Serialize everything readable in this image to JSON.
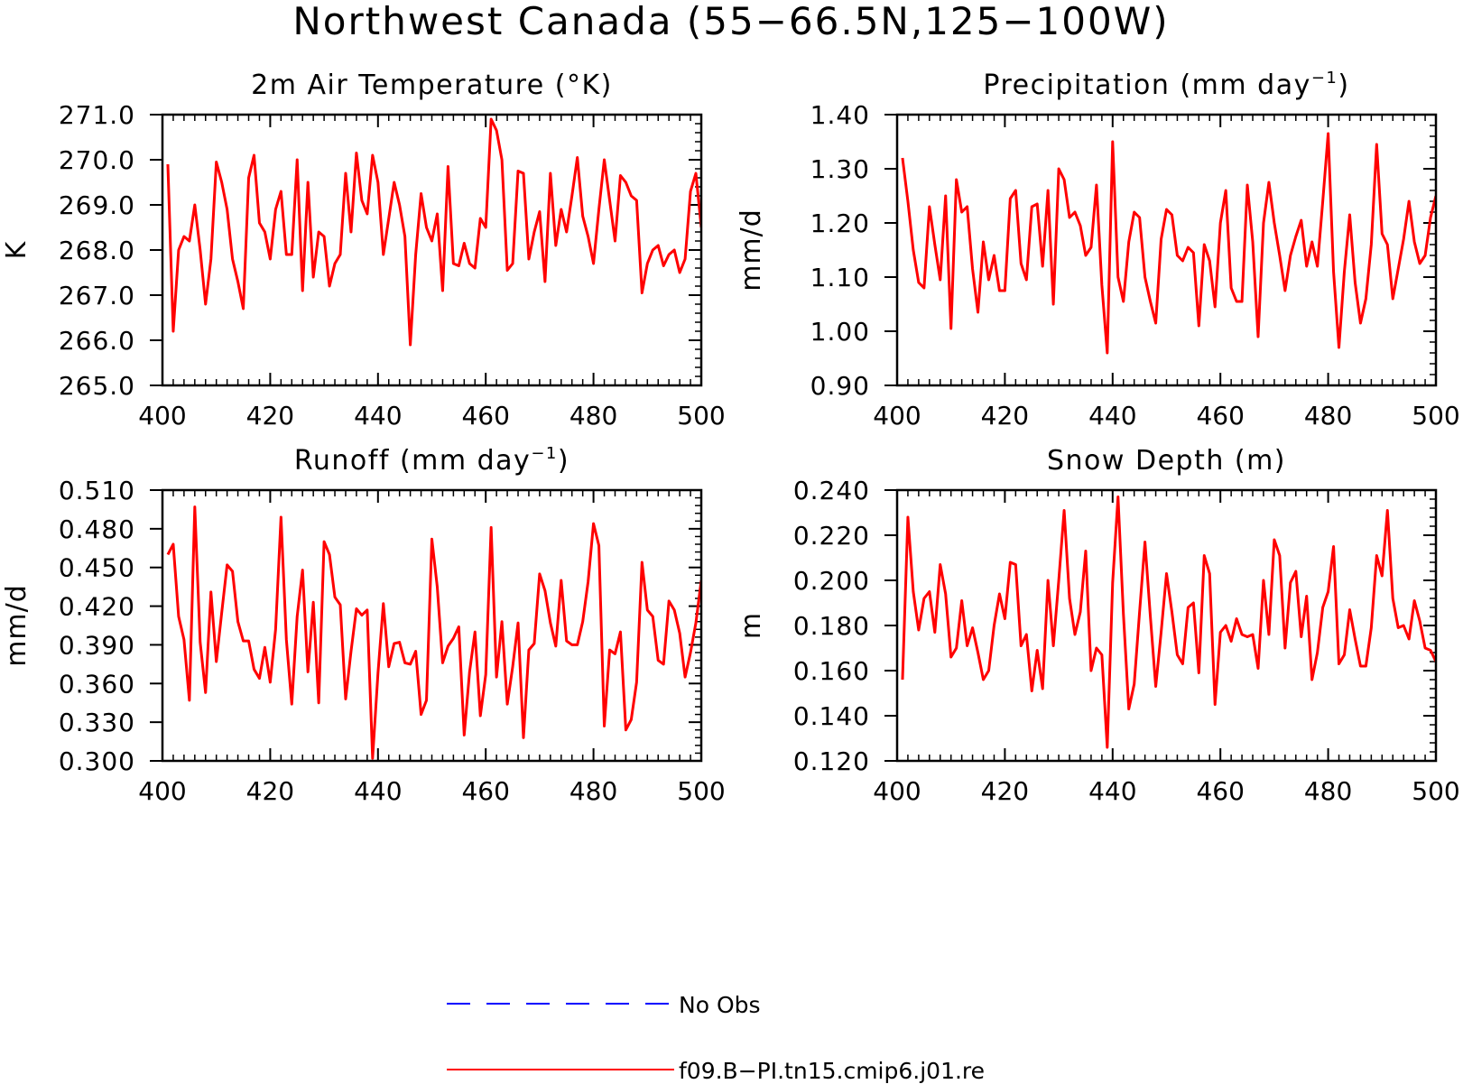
{
  "figure_title": "Northwest Canada (55−66.5N,125−100W)",
  "colors": {
    "model": "#ff0000",
    "obs": "#0000ff",
    "axis": "#000000"
  },
  "legend": {
    "items": [
      {
        "label": "No Obs",
        "color": "#0000ff",
        "style": "dashed"
      },
      {
        "label": "f09.B−PI.tn15.cmip6.j01.re",
        "color": "#ff0000",
        "style": "solid"
      }
    ]
  },
  "chart_data": [
    {
      "type": "line",
      "title": "2m Air Temperature (°K)",
      "title_sup": "",
      "title_suffix": "",
      "xlabel": "",
      "ylabel": "K",
      "xlim": [
        400,
        500
      ],
      "ylim": [
        265.0,
        271.0
      ],
      "xticks": [
        "400",
        "420",
        "440",
        "460",
        "480",
        "500"
      ],
      "yticks": [
        "265.0",
        "266.0",
        "267.0",
        "268.0",
        "269.0",
        "270.0",
        "271.0"
      ],
      "x_start": 401,
      "series": [
        {
          "values": [
            269.9,
            266.2,
            268.0,
            268.3,
            268.2,
            269.0,
            268.0,
            266.8,
            267.8,
            269.95,
            269.5,
            268.9,
            267.8,
            267.3,
            266.7,
            269.6,
            270.1,
            268.6,
            268.4,
            267.8,
            268.9,
            269.3,
            267.9,
            267.9,
            270.0,
            267.1,
            269.5,
            267.4,
            268.4,
            268.3,
            267.2,
            267.7,
            267.9,
            269.7,
            268.4,
            270.15,
            269.1,
            268.8,
            270.1,
            269.5,
            267.9,
            268.7,
            269.5,
            269.0,
            268.3,
            265.9,
            267.9,
            269.25,
            268.5,
            268.2,
            268.8,
            267.1,
            269.85,
            267.7,
            267.65,
            268.15,
            267.7,
            267.6,
            268.7,
            268.5,
            270.9,
            270.65,
            270.0,
            267.55,
            267.7,
            269.75,
            269.7,
            267.8,
            268.4,
            268.85,
            267.3,
            269.7,
            268.1,
            268.9,
            268.4,
            269.2,
            270.05,
            268.75,
            268.3,
            267.7,
            268.9,
            270.0,
            269.1,
            268.2,
            269.65,
            269.5,
            269.2,
            269.1,
            267.05,
            267.7,
            268.0,
            268.1,
            267.65,
            267.9,
            268.0,
            267.5,
            267.8,
            269.3,
            269.7,
            268.5
          ]
        }
      ]
    },
    {
      "type": "line",
      "title": "Precipitation (mm day",
      "title_sup": "−1",
      "title_suffix": ")",
      "xlabel": "",
      "ylabel": "mm/d",
      "xlim": [
        400,
        500
      ],
      "ylim": [
        0.9,
        1.4
      ],
      "xticks": [
        "400",
        "420",
        "440",
        "460",
        "480",
        "500"
      ],
      "yticks": [
        "0.90",
        "1.00",
        "1.10",
        "1.20",
        "1.30",
        "1.40"
      ],
      "x_start": 401,
      "series": [
        {
          "values": [
            1.32,
            1.24,
            1.15,
            1.09,
            1.08,
            1.23,
            1.16,
            1.095,
            1.25,
            1.005,
            1.28,
            1.22,
            1.23,
            1.115,
            1.035,
            1.165,
            1.095,
            1.14,
            1.075,
            1.075,
            1.245,
            1.26,
            1.125,
            1.095,
            1.23,
            1.235,
            1.12,
            1.26,
            1.05,
            1.3,
            1.28,
            1.21,
            1.22,
            1.195,
            1.14,
            1.155,
            1.27,
            1.085,
            0.96,
            1.35,
            1.1,
            1.055,
            1.165,
            1.22,
            1.21,
            1.1,
            1.055,
            1.015,
            1.17,
            1.225,
            1.215,
            1.14,
            1.13,
            1.155,
            1.145,
            1.01,
            1.16,
            1.13,
            1.045,
            1.2,
            1.26,
            1.08,
            1.055,
            1.055,
            1.27,
            1.165,
            0.99,
            1.2,
            1.275,
            1.2,
            1.14,
            1.075,
            1.14,
            1.175,
            1.205,
            1.12,
            1.165,
            1.12,
            1.24,
            1.365,
            1.11,
            0.97,
            1.11,
            1.215,
            1.09,
            1.015,
            1.06,
            1.16,
            1.345,
            1.18,
            1.16,
            1.06,
            1.115,
            1.17,
            1.24,
            1.165,
            1.125,
            1.14,
            1.21,
            1.25
          ]
        }
      ]
    },
    {
      "type": "line",
      "title": "Runoff (mm day",
      "title_sup": "−1",
      "title_suffix": ")",
      "xlabel": "",
      "ylabel": "mm/d",
      "xlim": [
        400,
        500
      ],
      "ylim": [
        0.3,
        0.51
      ],
      "xticks": [
        "400",
        "420",
        "440",
        "460",
        "480",
        "500"
      ],
      "yticks": [
        "0.300",
        "0.330",
        "0.360",
        "0.390",
        "0.420",
        "0.450",
        "0.480",
        "0.510"
      ],
      "x_start": 401,
      "series": [
        {
          "values": [
            0.46,
            0.468,
            0.412,
            0.394,
            0.347,
            0.497,
            0.392,
            0.353,
            0.431,
            0.377,
            0.415,
            0.452,
            0.447,
            0.408,
            0.393,
            0.393,
            0.371,
            0.364,
            0.388,
            0.361,
            0.402,
            0.489,
            0.394,
            0.344,
            0.412,
            0.448,
            0.369,
            0.423,
            0.345,
            0.47,
            0.46,
            0.427,
            0.421,
            0.348,
            0.385,
            0.418,
            0.413,
            0.417,
            0.302,
            0.368,
            0.422,
            0.373,
            0.391,
            0.392,
            0.376,
            0.375,
            0.385,
            0.336,
            0.347,
            0.472,
            0.435,
            0.376,
            0.389,
            0.395,
            0.404,
            0.32,
            0.369,
            0.4,
            0.335,
            0.367,
            0.481,
            0.365,
            0.408,
            0.344,
            0.373,
            0.407,
            0.318,
            0.386,
            0.391,
            0.445,
            0.432,
            0.407,
            0.389,
            0.44,
            0.393,
            0.39,
            0.39,
            0.408,
            0.439,
            0.484,
            0.467,
            0.327,
            0.386,
            0.383,
            0.4,
            0.324,
            0.332,
            0.361,
            0.454,
            0.417,
            0.412,
            0.378,
            0.375,
            0.424,
            0.417,
            0.399,
            0.365,
            0.384,
            0.407,
            0.44
          ]
        }
      ]
    },
    {
      "type": "line",
      "title": "Snow Depth (m)",
      "title_sup": "",
      "title_suffix": "",
      "xlabel": "",
      "ylabel": "m",
      "xlim": [
        400,
        500
      ],
      "ylim": [
        0.12,
        0.24
      ],
      "xticks": [
        "400",
        "420",
        "440",
        "460",
        "480",
        "500"
      ],
      "yticks": [
        "0.120",
        "0.140",
        "0.160",
        "0.180",
        "0.200",
        "0.220",
        "0.240"
      ],
      "x_start": 401,
      "series": [
        {
          "values": [
            0.156,
            0.228,
            0.195,
            0.178,
            0.192,
            0.195,
            0.177,
            0.207,
            0.194,
            0.166,
            0.17,
            0.191,
            0.171,
            0.179,
            0.168,
            0.156,
            0.16,
            0.18,
            0.194,
            0.183,
            0.208,
            0.207,
            0.171,
            0.176,
            0.151,
            0.169,
            0.152,
            0.2,
            0.171,
            0.2,
            0.231,
            0.192,
            0.176,
            0.186,
            0.213,
            0.16,
            0.17,
            0.167,
            0.126,
            0.199,
            0.237,
            0.185,
            0.143,
            0.154,
            0.186,
            0.217,
            0.184,
            0.153,
            0.177,
            0.203,
            0.186,
            0.167,
            0.163,
            0.188,
            0.19,
            0.159,
            0.211,
            0.203,
            0.145,
            0.177,
            0.18,
            0.173,
            0.183,
            0.176,
            0.175,
            0.176,
            0.161,
            0.2,
            0.176,
            0.218,
            0.211,
            0.17,
            0.199,
            0.204,
            0.175,
            0.193,
            0.156,
            0.168,
            0.188,
            0.195,
            0.215,
            0.163,
            0.167,
            0.187,
            0.174,
            0.162,
            0.162,
            0.179,
            0.211,
            0.202,
            0.231,
            0.192,
            0.179,
            0.18,
            0.174,
            0.191,
            0.182,
            0.17,
            0.169,
            0.164
          ]
        }
      ]
    }
  ]
}
